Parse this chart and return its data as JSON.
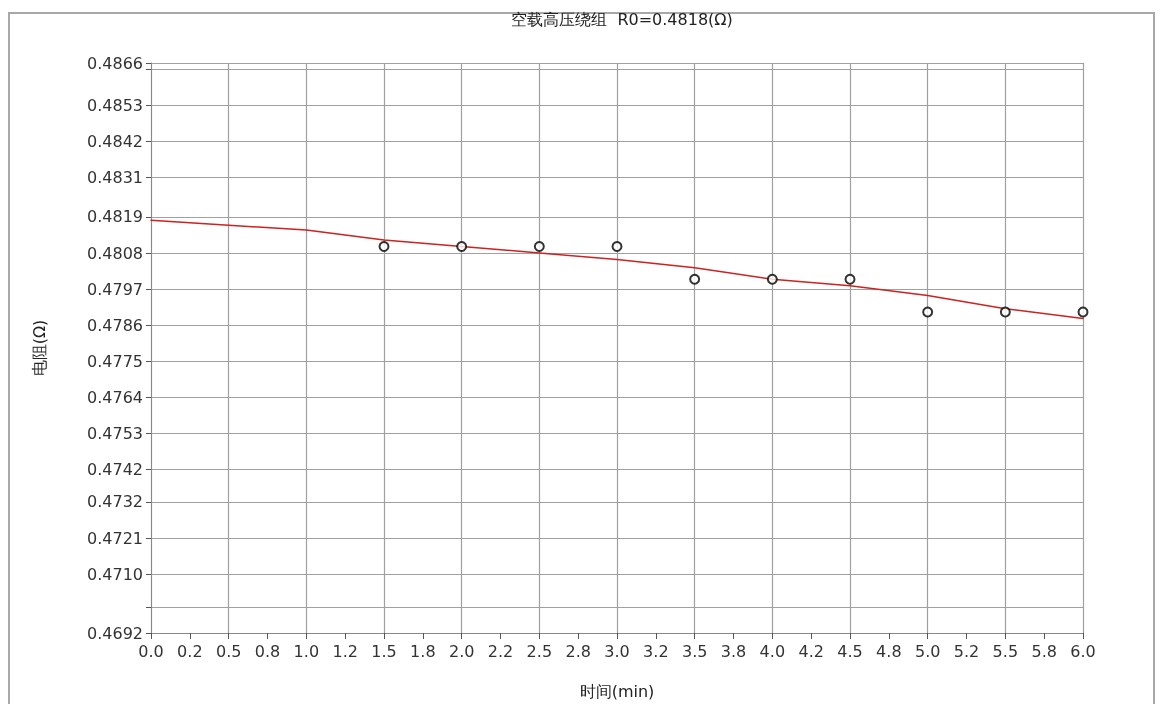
{
  "chart_data": {
    "type": "scatter",
    "title": "空载高压绕组  R0=0.4818(Ω)",
    "xlabel": "时间(min)",
    "ylabel": "电阻(Ω)",
    "xlim": [
      0,
      6
    ],
    "xticks": [
      {
        "value": 0,
        "label": "0.0"
      },
      {
        "value": 0.25,
        "label": "0.2"
      },
      {
        "value": 0.5,
        "label": "0.5"
      },
      {
        "value": 0.75,
        "label": "0.8"
      },
      {
        "value": 1,
        "label": "1.0"
      },
      {
        "value": 1.25,
        "label": "1.2"
      },
      {
        "value": 1.5,
        "label": "1.5"
      },
      {
        "value": 1.75,
        "label": "1.8"
      },
      {
        "value": 2,
        "label": "2.0"
      },
      {
        "value": 2.25,
        "label": "2.2"
      },
      {
        "value": 2.5,
        "label": "2.5"
      },
      {
        "value": 2.75,
        "label": "2.8"
      },
      {
        "value": 3,
        "label": "3.0"
      },
      {
        "value": 3.25,
        "label": "3.2"
      },
      {
        "value": 3.5,
        "label": "3.5"
      },
      {
        "value": 3.75,
        "label": "3.8"
      },
      {
        "value": 4,
        "label": "4.0"
      },
      {
        "value": 4.25,
        "label": "4.2"
      },
      {
        "value": 4.5,
        "label": "4.5"
      },
      {
        "value": 4.75,
        "label": "4.8"
      },
      {
        "value": 5,
        "label": "5.0"
      },
      {
        "value": 5.25,
        "label": "5.2"
      },
      {
        "value": 5.5,
        "label": "5.5"
      },
      {
        "value": 5.75,
        "label": "5.8"
      },
      {
        "value": 6,
        "label": "6.0"
      }
    ],
    "ylim": [
      0.4692,
      0.4866
    ],
    "yticks": [
      0.4692,
      {
        "value": 0.47,
        "label": null
      },
      {
        "value": 0.471,
        "label": "0.4710"
      },
      0.4721,
      0.4732,
      0.4742,
      0.4753,
      0.4764,
      0.4775,
      0.4786,
      0.4797,
      0.4808,
      0.4819,
      0.4831,
      0.4842,
      0.4853,
      {
        "value": 0.4864,
        "label": null
      },
      0.4866
    ],
    "grid": true,
    "marker": "circle",
    "series": [
      {
        "color": "#000000",
        "x": [
          1.5,
          2,
          2.5,
          3,
          3.5,
          4,
          4.5,
          5,
          5.5,
          6
        ],
        "values": [
          0.481,
          0.481,
          0.481,
          0.481,
          0.48,
          0.48,
          0.48,
          0.479,
          0.479,
          0.479
        ]
      },
      {
        "type": "line",
        "color": "#cc2222",
        "marker": "none",
        "line_style": "solid",
        "x": [
          0,
          0.5,
          1,
          1.5,
          2,
          2.5,
          3,
          3.5,
          4,
          4.5,
          5,
          5.5,
          6
        ],
        "values": [
          0.4818,
          0.48165,
          0.4815,
          0.4812,
          0.481,
          0.4808,
          0.4806,
          0.48035,
          0.48,
          0.4798,
          0.4795,
          0.4791,
          0.4788
        ]
      }
    ]
  }
}
